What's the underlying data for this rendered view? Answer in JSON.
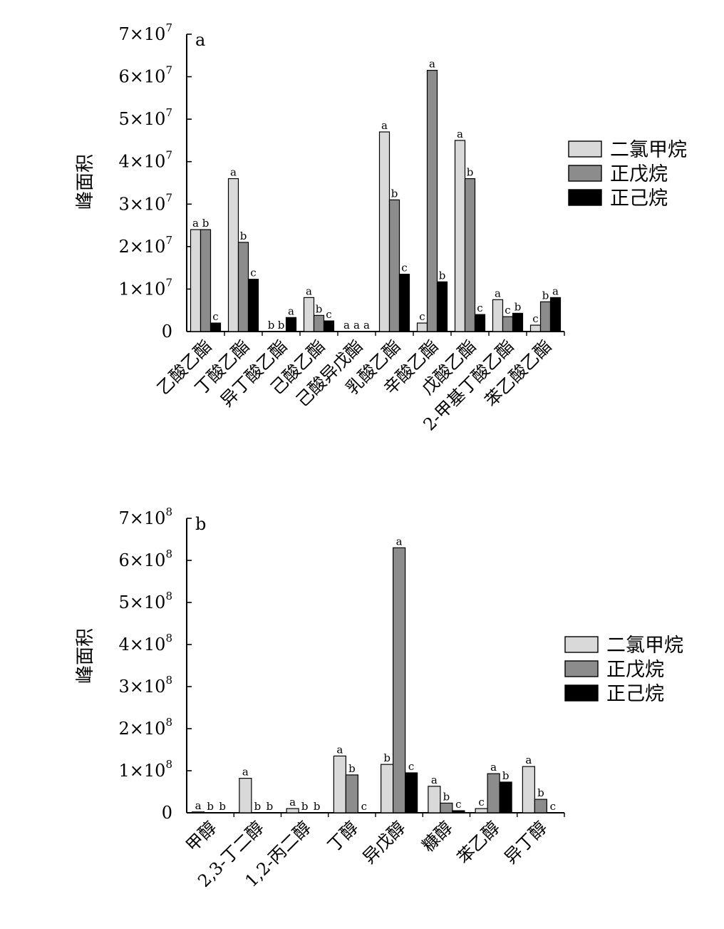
{
  "legend_colors": {
    "二氯甲烷": "#d9d9d9",
    "正戊烷": "#8c8c8c",
    "正己烷": "#000000"
  },
  "chart_data": [
    {
      "type": "bar",
      "panel_label": "a",
      "ylabel": "峰面积",
      "ylim": [
        0,
        70000000
      ],
      "yticks": [
        0,
        10000000,
        20000000,
        30000000,
        40000000,
        50000000,
        60000000,
        70000000
      ],
      "ytick_labels": [
        {
          "mant": "0",
          "exp": ""
        },
        {
          "mant": "1×10",
          "exp": "7"
        },
        {
          "mant": "2×10",
          "exp": "7"
        },
        {
          "mant": "3×10",
          "exp": "7"
        },
        {
          "mant": "4×10",
          "exp": "7"
        },
        {
          "mant": "5×10",
          "exp": "7"
        },
        {
          "mant": "6×10",
          "exp": "7"
        },
        {
          "mant": "7×10",
          "exp": "7"
        }
      ],
      "legend_position": "right",
      "categories": [
        "乙酸乙酯",
        "丁酸乙酯",
        "异丁酸乙酯",
        "己酸乙酯",
        "己酸异戊酯",
        "乳酸乙酯",
        "辛酸乙酯",
        "戊酸乙酯",
        "2-甲基丁酸乙酯",
        "苯乙酸乙酯"
      ],
      "series": [
        {
          "name": "二氯甲烷",
          "values": [
            24000000,
            36000000,
            0,
            8000000,
            0,
            47000000,
            2000000,
            45000000,
            7500000,
            1500000
          ],
          "letters": [
            "a",
            "a",
            "b",
            "a",
            "a",
            "a",
            "c",
            "a",
            "a",
            "c"
          ]
        },
        {
          "name": "正戊烷",
          "values": [
            24000000,
            21000000,
            0,
            3800000,
            0,
            31000000,
            61500000,
            36000000,
            3500000,
            7000000
          ],
          "letters": [
            "b",
            "b",
            "b",
            "b",
            "a",
            "b",
            "a",
            "b",
            "c",
            "b"
          ]
        },
        {
          "name": "正己烷",
          "values": [
            2000000,
            12300000,
            3300000,
            2500000,
            0,
            13500000,
            11700000,
            4000000,
            4300000,
            8000000
          ],
          "letters": [
            "c",
            "c",
            "a",
            "c",
            "a",
            "c",
            "b",
            "c",
            "b",
            "a"
          ]
        }
      ]
    },
    {
      "type": "bar",
      "panel_label": "b",
      "ylabel": "峰面积",
      "ylim": [
        0,
        700000000
      ],
      "yticks": [
        0,
        100000000,
        200000000,
        300000000,
        400000000,
        500000000,
        600000000,
        700000000
      ],
      "ytick_labels": [
        {
          "mant": "0",
          "exp": ""
        },
        {
          "mant": "1×10",
          "exp": "8"
        },
        {
          "mant": "2×10",
          "exp": "8"
        },
        {
          "mant": "3×10",
          "exp": "8"
        },
        {
          "mant": "4×10",
          "exp": "8"
        },
        {
          "mant": "5×10",
          "exp": "8"
        },
        {
          "mant": "6×10",
          "exp": "8"
        },
        {
          "mant": "7×10",
          "exp": "8"
        }
      ],
      "legend_position": "right",
      "categories": [
        "甲醇",
        "2,3-丁二醇",
        "1,2-丙二醇",
        "丁醇",
        "异戊醇",
        "糠醇",
        "苯乙醇",
        "异丁醇"
      ],
      "series": [
        {
          "name": "二氯甲烷",
          "values": [
            2000000,
            82000000,
            10000000,
            135000000,
            115000000,
            63000000,
            10000000,
            110000000
          ],
          "letters": [
            "a",
            "a",
            "a",
            "a",
            "b",
            "a",
            "c",
            "a"
          ]
        },
        {
          "name": "正戊烷",
          "values": [
            0,
            0,
            0,
            90000000,
            630000000,
            23000000,
            93000000,
            32000000
          ],
          "letters": [
            "b",
            "b",
            "b",
            "b",
            "a",
            "b",
            "a",
            "b"
          ]
        },
        {
          "name": "正己烷",
          "values": [
            0,
            0,
            0,
            0,
            95000000,
            5000000,
            73000000,
            0
          ],
          "letters": [
            "b",
            "b",
            "b",
            "c",
            "c",
            "c",
            "b",
            "c"
          ]
        }
      ]
    }
  ]
}
